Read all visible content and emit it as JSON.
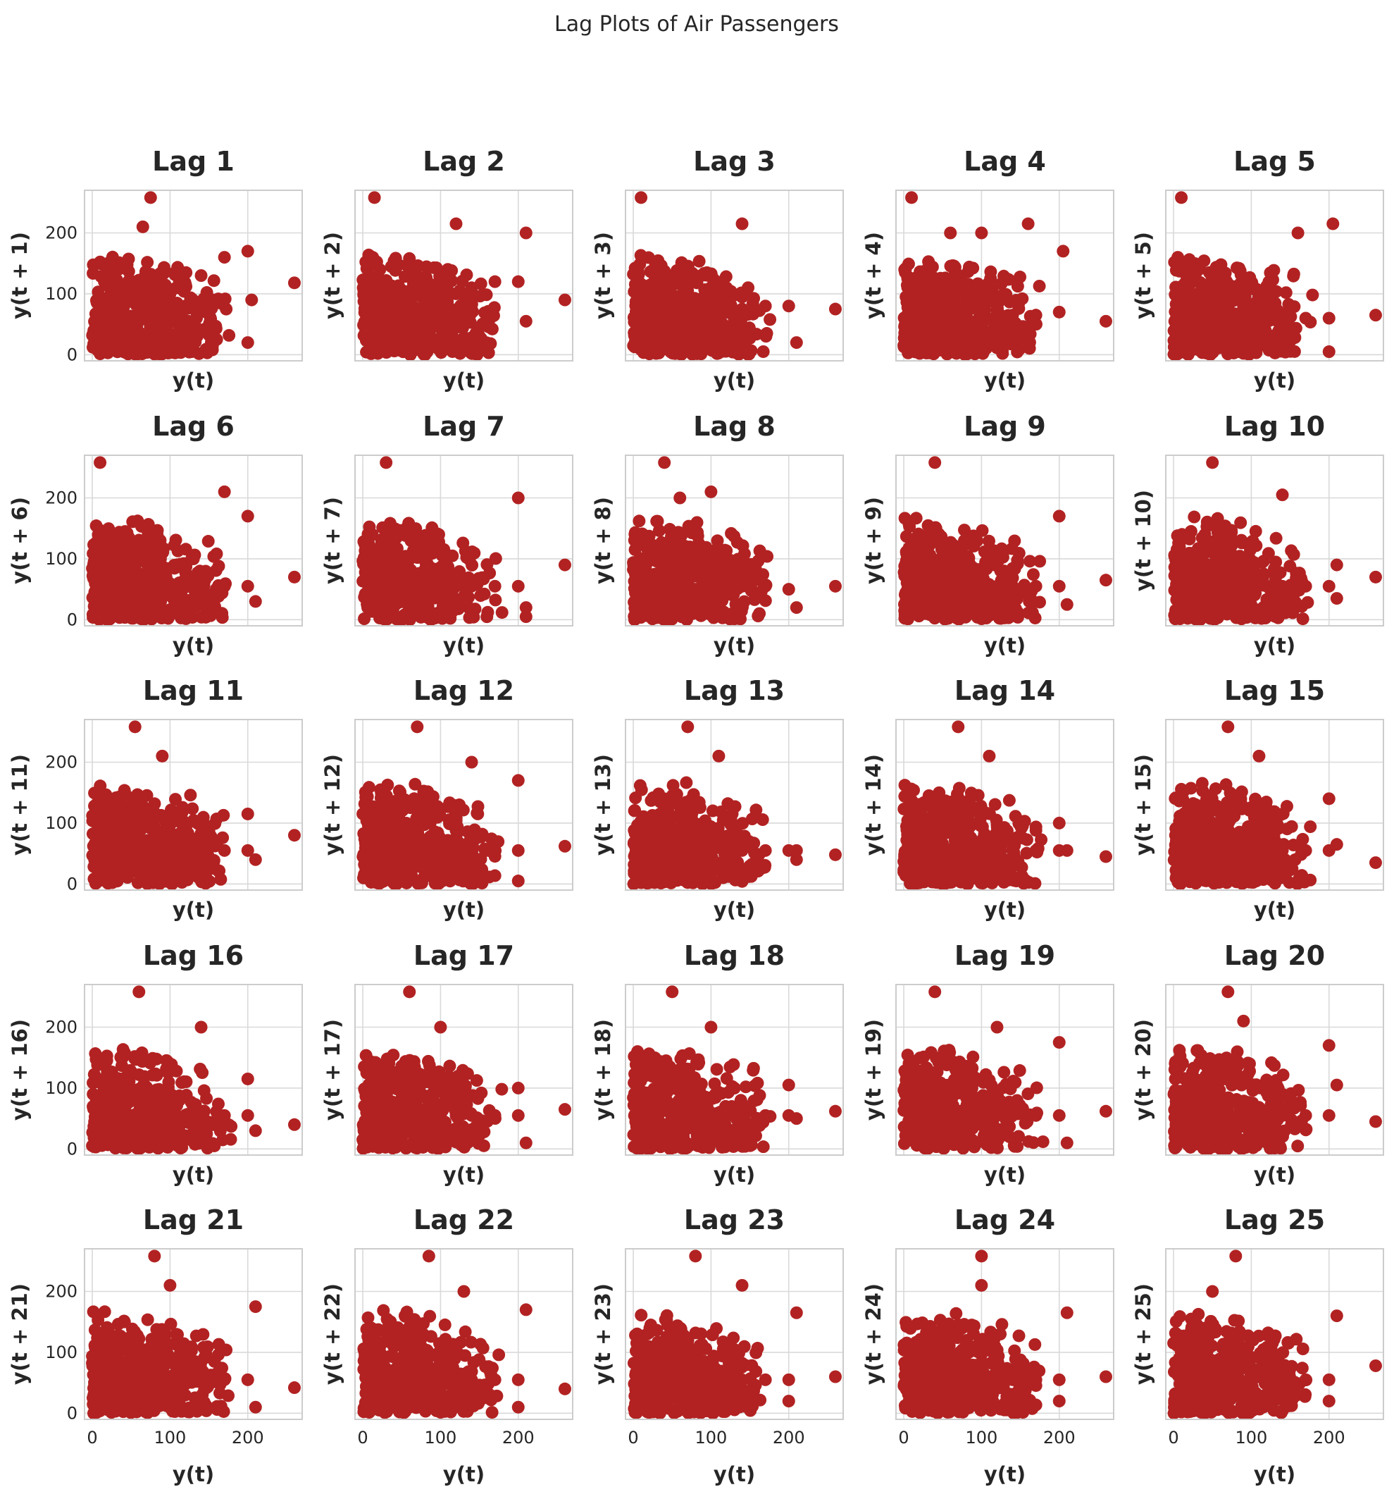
{
  "chart_data": {
    "type": "scatter",
    "title": "Lag Plots of Air Passengers",
    "layout": {
      "rows": 5,
      "cols": 5
    },
    "xlabel": "y(t)",
    "x_ticks": [
      0,
      100,
      200
    ],
    "y_ticks": [
      0,
      100,
      200
    ],
    "xlim": [
      -10,
      270
    ],
    "ylim": [
      -10,
      270
    ],
    "grid": true,
    "marker_color": "#b22222",
    "subplots": [
      {
        "title": "Lag 1",
        "lag": 1,
        "ylabel": "y(t + 1)",
        "x": [
          15,
          40,
          60,
          80,
          100,
          120,
          140,
          170,
          200,
          260,
          75,
          65,
          205,
          200,
          160
        ],
        "y": [
          20,
          45,
          60,
          85,
          100,
          115,
          130,
          160,
          170,
          118,
          258,
          210,
          90,
          20,
          25
        ]
      },
      {
        "title": "Lag 2",
        "lag": 2,
        "ylabel": "y(t + 2)",
        "x": [
          15,
          40,
          60,
          80,
          100,
          120,
          140,
          170,
          200,
          260,
          15,
          120,
          210,
          210,
          80
        ],
        "y": [
          20,
          40,
          55,
          75,
          90,
          100,
          110,
          120,
          120,
          90,
          258,
          215,
          200,
          55,
          0
        ]
      },
      {
        "title": "Lag 3",
        "lag": 3,
        "ylabel": "y(t + 3)",
        "x": [
          15,
          40,
          60,
          80,
          100,
          120,
          140,
          170,
          200,
          260,
          10,
          140,
          210,
          140
        ],
        "y": [
          30,
          45,
          55,
          65,
          70,
          70,
          75,
          80,
          80,
          75,
          258,
          215,
          20,
          5
        ]
      },
      {
        "title": "Lag 4",
        "lag": 4,
        "ylabel": "y(t + 4)",
        "x": [
          15,
          40,
          60,
          80,
          100,
          120,
          140,
          170,
          200,
          260,
          10,
          160,
          205,
          60,
          100
        ],
        "y": [
          30,
          45,
          55,
          60,
          60,
          60,
          65,
          65,
          70,
          55,
          258,
          215,
          170,
          200,
          200
        ]
      },
      {
        "title": "Lag 5",
        "lag": 5,
        "ylabel": "y(t + 5)",
        "x": [
          15,
          40,
          60,
          80,
          100,
          120,
          140,
          170,
          200,
          260,
          10,
          205,
          200,
          160
        ],
        "y": [
          30,
          40,
          50,
          55,
          55,
          55,
          60,
          60,
          60,
          65,
          258,
          215,
          5,
          200
        ]
      },
      {
        "title": "Lag 6",
        "lag": 6,
        "ylabel": "y(t + 6)",
        "x": [
          15,
          40,
          60,
          80,
          100,
          120,
          140,
          170,
          200,
          260,
          10,
          170,
          200,
          210
        ],
        "y": [
          30,
          40,
          50,
          55,
          55,
          55,
          55,
          55,
          55,
          70,
          258,
          210,
          170,
          30
        ]
      },
      {
        "title": "Lag 7",
        "lag": 7,
        "ylabel": "y(t + 7)",
        "x": [
          15,
          40,
          60,
          80,
          100,
          120,
          140,
          170,
          200,
          260,
          30,
          200,
          210,
          210
        ],
        "y": [
          30,
          40,
          50,
          55,
          55,
          55,
          55,
          55,
          55,
          90,
          258,
          200,
          20,
          5
        ]
      },
      {
        "title": "Lag 8",
        "lag": 8,
        "ylabel": "y(t + 8)",
        "x": [
          15,
          40,
          60,
          80,
          100,
          120,
          140,
          170,
          200,
          260,
          40,
          100,
          210,
          60
        ],
        "y": [
          30,
          40,
          50,
          50,
          55,
          55,
          55,
          55,
          50,
          55,
          258,
          210,
          20,
          200
        ]
      },
      {
        "title": "Lag 9",
        "lag": 9,
        "ylabel": "y(t + 9)",
        "x": [
          15,
          40,
          60,
          80,
          100,
          120,
          140,
          170,
          200,
          260,
          40,
          200,
          210
        ],
        "y": [
          30,
          40,
          50,
          55,
          55,
          55,
          55,
          55,
          55,
          65,
          258,
          170,
          25
        ]
      },
      {
        "title": "Lag 10",
        "lag": 10,
        "ylabel": "y(t + 10)",
        "x": [
          15,
          40,
          60,
          80,
          100,
          120,
          140,
          170,
          200,
          260,
          50,
          140,
          210,
          210
        ],
        "y": [
          30,
          40,
          50,
          55,
          55,
          55,
          55,
          55,
          55,
          70,
          258,
          205,
          90,
          35
        ]
      },
      {
        "title": "Lag 11",
        "lag": 11,
        "ylabel": "y(t + 11)",
        "x": [
          15,
          40,
          60,
          80,
          100,
          120,
          140,
          170,
          200,
          260,
          55,
          90,
          200,
          210
        ],
        "y": [
          30,
          40,
          50,
          55,
          55,
          55,
          55,
          55,
          55,
          80,
          258,
          210,
          115,
          40
        ]
      },
      {
        "title": "Lag 12",
        "lag": 12,
        "ylabel": "y(t + 12)",
        "x": [
          15,
          40,
          60,
          80,
          100,
          120,
          140,
          170,
          200,
          260,
          70,
          140,
          200,
          200
        ],
        "y": [
          30,
          40,
          50,
          55,
          55,
          55,
          55,
          55,
          55,
          62,
          258,
          200,
          170,
          5
        ]
      },
      {
        "title": "Lag 13",
        "lag": 13,
        "ylabel": "y(t + 13)",
        "x": [
          15,
          40,
          60,
          80,
          100,
          120,
          140,
          170,
          200,
          260,
          70,
          110,
          210,
          210
        ],
        "y": [
          30,
          40,
          50,
          55,
          55,
          55,
          55,
          55,
          55,
          48,
          258,
          210,
          55,
          40
        ]
      },
      {
        "title": "Lag 14",
        "lag": 14,
        "ylabel": "y(t + 14)",
        "x": [
          15,
          40,
          60,
          80,
          100,
          120,
          140,
          170,
          200,
          260,
          70,
          110,
          200,
          210
        ],
        "y": [
          30,
          40,
          50,
          55,
          55,
          55,
          55,
          55,
          55,
          45,
          258,
          210,
          100,
          55
        ]
      },
      {
        "title": "Lag 15",
        "lag": 15,
        "ylabel": "y(t + 15)",
        "x": [
          15,
          40,
          60,
          80,
          100,
          120,
          140,
          170,
          200,
          260,
          70,
          110,
          200,
          210
        ],
        "y": [
          30,
          40,
          50,
          55,
          55,
          55,
          55,
          55,
          55,
          35,
          258,
          210,
          140,
          65
        ]
      },
      {
        "title": "Lag 16",
        "lag": 16,
        "ylabel": "y(t + 16)",
        "x": [
          15,
          40,
          60,
          80,
          100,
          120,
          140,
          170,
          200,
          260,
          60,
          140,
          200,
          210
        ],
        "y": [
          30,
          40,
          50,
          55,
          55,
          55,
          55,
          55,
          55,
          40,
          258,
          200,
          115,
          30
        ]
      },
      {
        "title": "Lag 17",
        "lag": 17,
        "ylabel": "y(t + 17)",
        "x": [
          15,
          40,
          60,
          80,
          100,
          120,
          140,
          170,
          200,
          260,
          60,
          100,
          200,
          210
        ],
        "y": [
          30,
          40,
          50,
          55,
          55,
          55,
          55,
          55,
          55,
          65,
          258,
          200,
          100,
          10
        ]
      },
      {
        "title": "Lag 18",
        "lag": 18,
        "ylabel": "y(t + 18)",
        "x": [
          15,
          40,
          60,
          80,
          100,
          120,
          140,
          170,
          200,
          260,
          50,
          100,
          200,
          210
        ],
        "y": [
          30,
          40,
          50,
          55,
          55,
          55,
          55,
          55,
          55,
          62,
          258,
          200,
          105,
          50
        ]
      },
      {
        "title": "Lag 19",
        "lag": 19,
        "ylabel": "y(t + 19)",
        "x": [
          15,
          40,
          60,
          80,
          100,
          120,
          140,
          170,
          200,
          260,
          40,
          120,
          200,
          210
        ],
        "y": [
          30,
          40,
          50,
          55,
          55,
          55,
          55,
          55,
          55,
          62,
          258,
          200,
          175,
          10
        ]
      },
      {
        "title": "Lag 20",
        "lag": 20,
        "ylabel": "y(t + 20)",
        "x": [
          15,
          40,
          60,
          80,
          100,
          120,
          140,
          170,
          200,
          260,
          70,
          90,
          200,
          210
        ],
        "y": [
          30,
          40,
          50,
          55,
          55,
          55,
          55,
          55,
          55,
          45,
          258,
          210,
          170,
          105
        ]
      },
      {
        "title": "Lag 21",
        "lag": 21,
        "ylabel": "y(t + 21)",
        "x": [
          15,
          40,
          60,
          80,
          100,
          120,
          140,
          170,
          200,
          260,
          80,
          100,
          210,
          210
        ],
        "y": [
          30,
          40,
          50,
          55,
          55,
          55,
          55,
          55,
          55,
          42,
          258,
          210,
          175,
          10
        ]
      },
      {
        "title": "Lag 22",
        "lag": 22,
        "ylabel": "y(t + 22)",
        "x": [
          15,
          40,
          60,
          80,
          100,
          120,
          140,
          170,
          200,
          260,
          85,
          130,
          210,
          200
        ],
        "y": [
          30,
          40,
          50,
          55,
          55,
          55,
          55,
          55,
          55,
          40,
          258,
          200,
          170,
          10
        ]
      },
      {
        "title": "Lag 23",
        "lag": 23,
        "ylabel": "y(t + 23)",
        "x": [
          15,
          40,
          60,
          80,
          100,
          120,
          140,
          170,
          200,
          260,
          80,
          140,
          210,
          200
        ],
        "y": [
          30,
          40,
          50,
          55,
          55,
          55,
          55,
          55,
          55,
          60,
          258,
          210,
          165,
          20
        ]
      },
      {
        "title": "Lag 24",
        "lag": 24,
        "ylabel": "y(t + 24)",
        "x": [
          15,
          40,
          60,
          80,
          100,
          120,
          140,
          170,
          200,
          260,
          100,
          100,
          210,
          200
        ],
        "y": [
          30,
          40,
          50,
          55,
          55,
          55,
          55,
          55,
          55,
          60,
          258,
          210,
          165,
          20
        ]
      },
      {
        "title": "Lag 25",
        "lag": 25,
        "ylabel": "y(t + 25)",
        "x": [
          15,
          40,
          60,
          80,
          100,
          120,
          140,
          170,
          200,
          260,
          80,
          50,
          210,
          200
        ],
        "y": [
          30,
          40,
          50,
          55,
          55,
          55,
          55,
          55,
          55,
          78,
          258,
          200,
          160,
          20
        ]
      }
    ]
  }
}
